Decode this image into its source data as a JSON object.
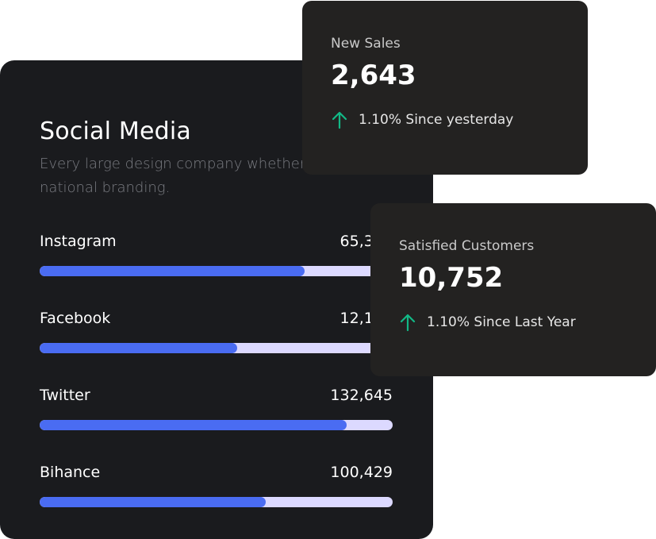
{
  "social": {
    "title": "Social Media",
    "description": "Every large design company whether it's a multi-national branding.",
    "platforms": [
      {
        "name": "Instagram",
        "count": "65,376",
        "progress": 0.75
      },
      {
        "name": "Facebook",
        "count": "12,109",
        "progress": 0.56
      },
      {
        "name": "Twitter",
        "count": "132,645",
        "progress": 0.87
      },
      {
        "name": "Bihance",
        "count": "100,429",
        "progress": 0.64
      }
    ]
  },
  "cards": [
    {
      "label": "New Sales",
      "value": "2,643",
      "trend": "1.10% Since yesterday",
      "trend_icon": "arrow-up-icon"
    },
    {
      "label": "Satisfied Customers",
      "value": "10,752",
      "trend": "1.10% Since Last Year",
      "trend_icon": "arrow-up-icon"
    }
  ],
  "colors": {
    "panel_bg": "#1a1b1e",
    "card_bg": "#232221",
    "bar_fill": "#4a6cf2",
    "bar_track": "#dcd9ff",
    "trend_up": "#12b886"
  }
}
